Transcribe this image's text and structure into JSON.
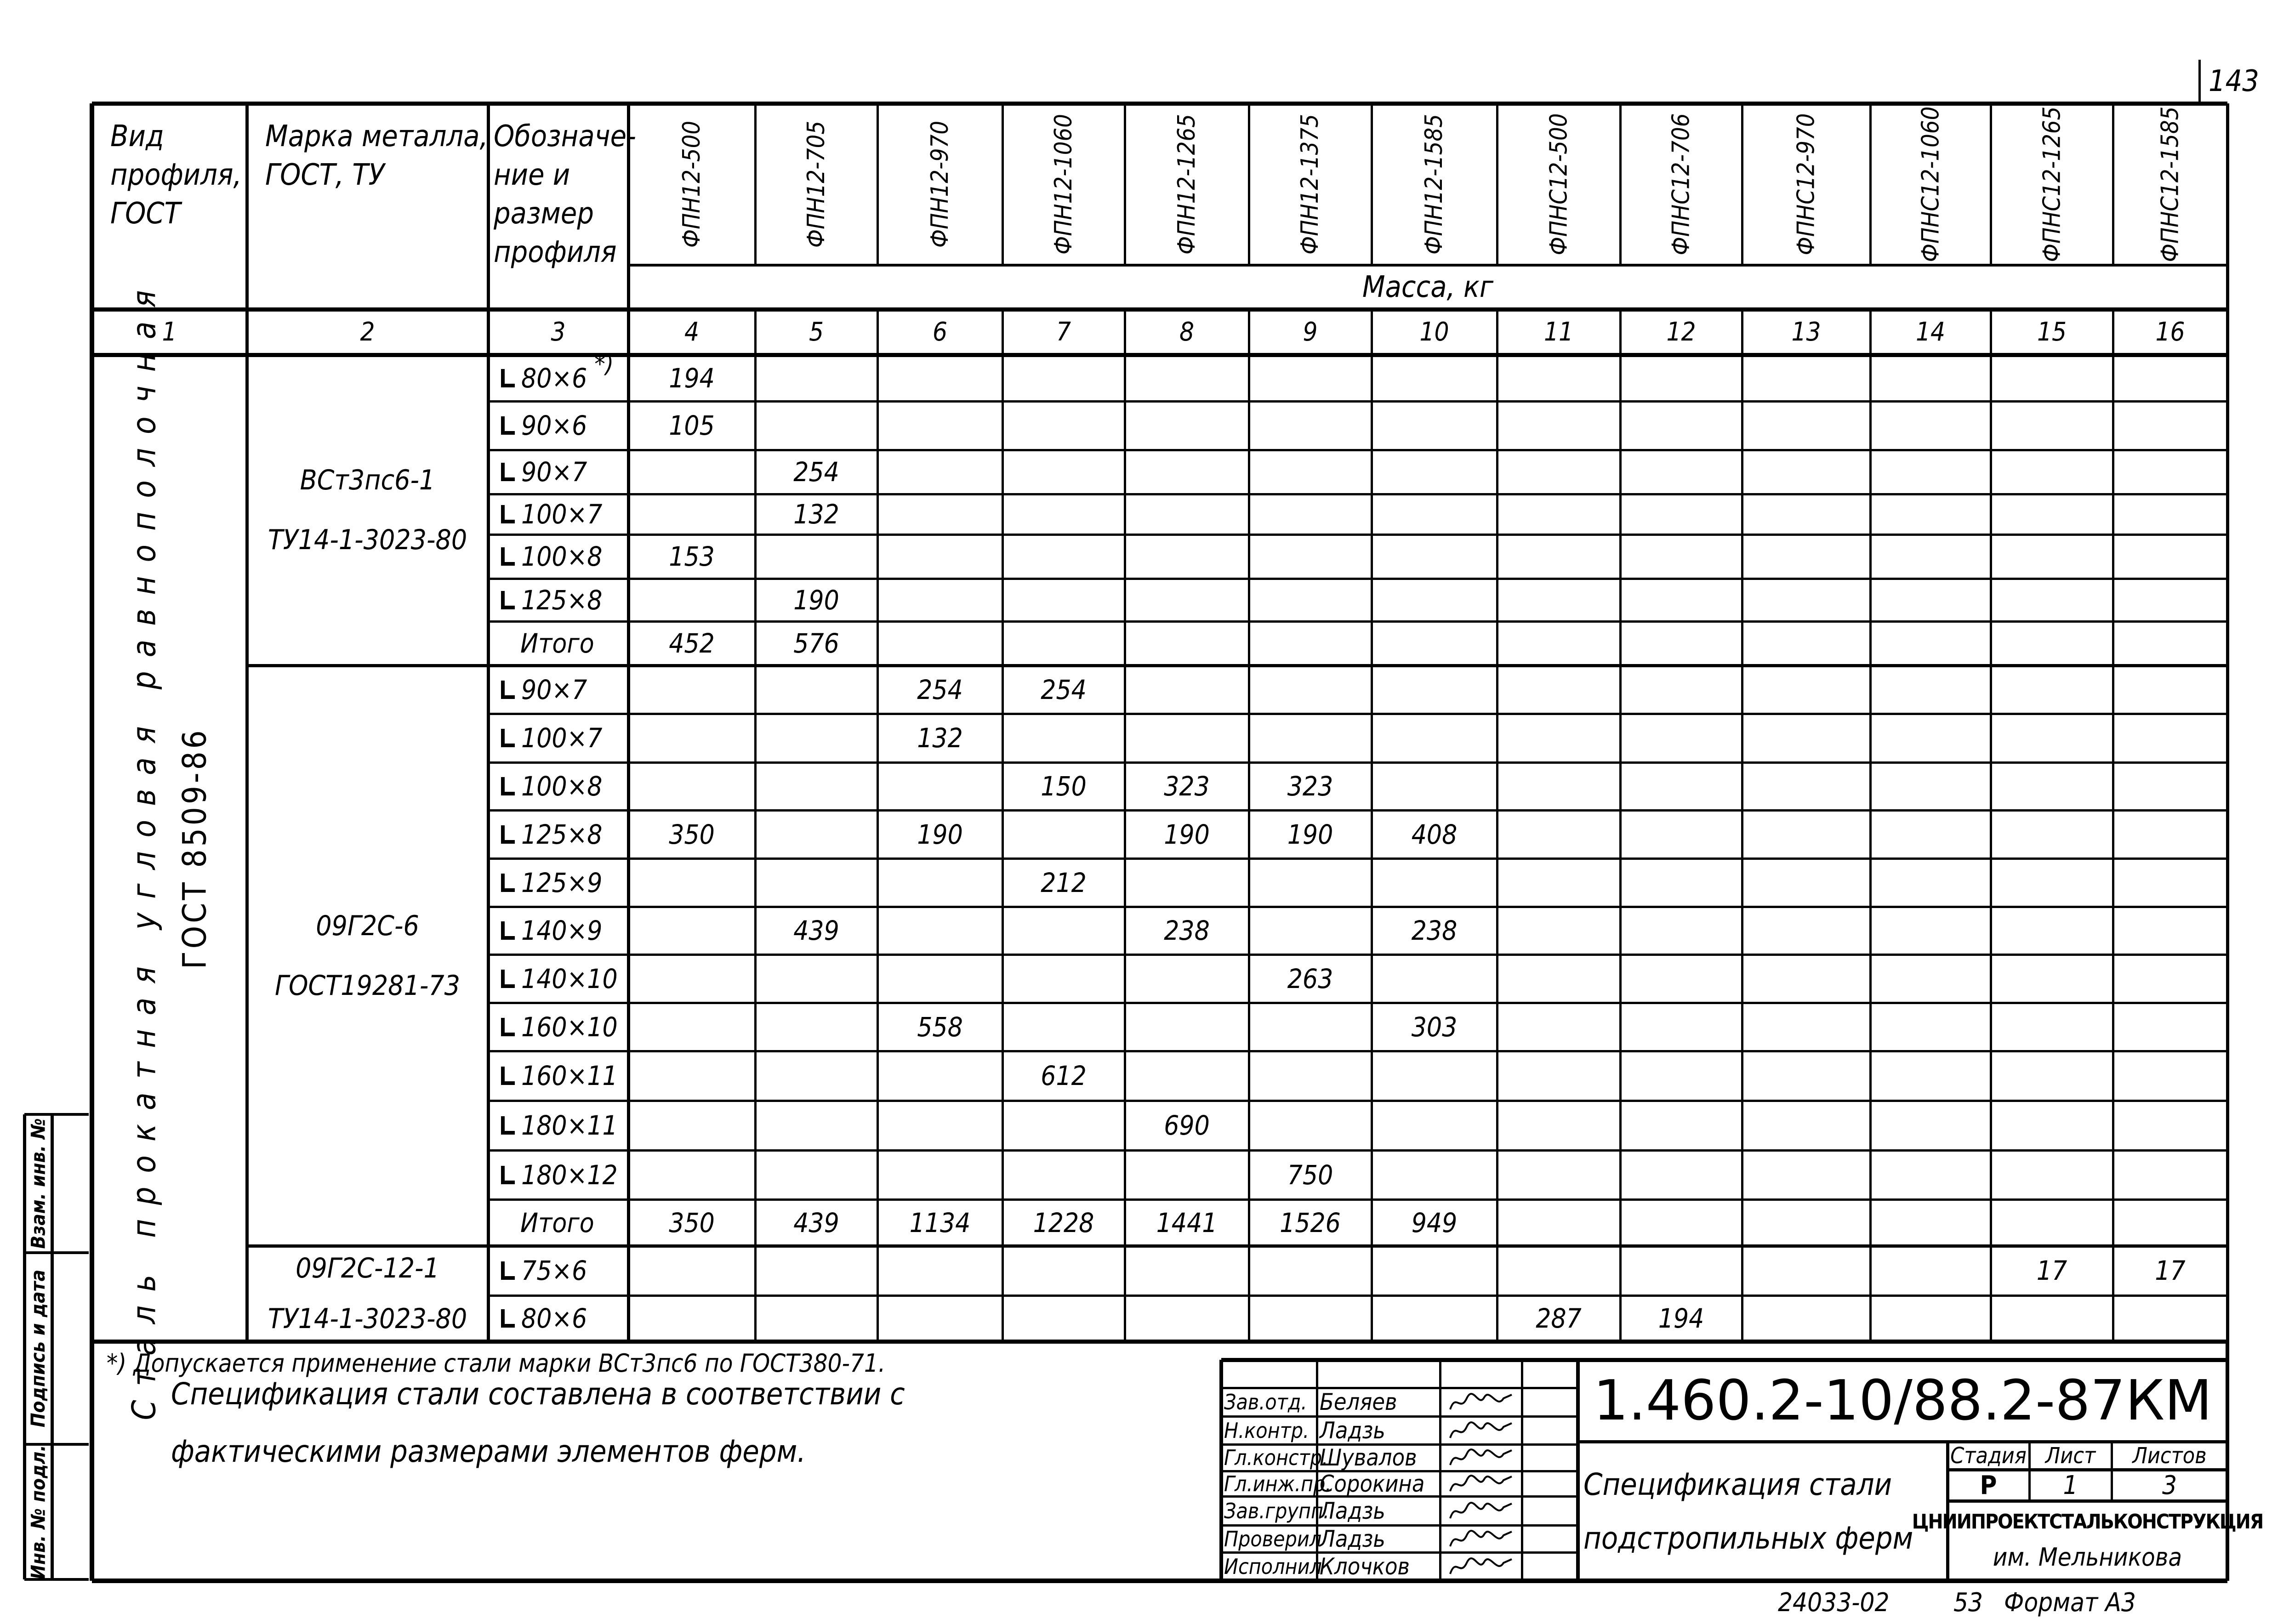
{
  "page_number": "143",
  "header": {
    "col1": "Вид профиля, ГОСТ",
    "col2": "Марка металла, ГОСТ, ТУ",
    "col3": "Обозначе-ние и размер профиля",
    "marks": [
      "ФПН12-500",
      "ФПН12-705",
      "ФПН12-970",
      "ФПН12-1060",
      "ФПН12-1265",
      "ФПН12-1375",
      "ФПН12-1585",
      "ФПНС12-500",
      "ФПНС12-706",
      "ФПНС12-970",
      "ФПНС12-1060",
      "ФПНС12-1265",
      "ФПНС12-1585"
    ],
    "mass_label": "Масса, кг",
    "col_numbers": [
      "1",
      "2",
      "3",
      "4",
      "5",
      "6",
      "7",
      "8",
      "9",
      "10",
      "11",
      "12",
      "13",
      "14",
      "15",
      "16"
    ]
  },
  "profile_type": {
    "line1": "Сталь прокатная угловая равнополочная",
    "line2": "ГОСТ 8509-86"
  },
  "groups": [
    {
      "steel": "ВСт3пс6-1",
      "spec": "ТУ14-1-3023-80",
      "rows": [
        {
          "profile": "80×6",
          "footnote": "*)",
          "angle": true,
          "values": [
            "194",
            "",
            "",
            "",
            "",
            "",
            "",
            "",
            "",
            "",
            "",
            "",
            ""
          ]
        },
        {
          "profile": "90×6",
          "angle": true,
          "values": [
            "105",
            "",
            "",
            "",
            "",
            "",
            "",
            "",
            "",
            "",
            "",
            "",
            ""
          ]
        },
        {
          "profile": "90×7",
          "angle": true,
          "values": [
            "",
            "254",
            "",
            "",
            "",
            "",
            "",
            "",
            "",
            "",
            "",
            "",
            ""
          ]
        },
        {
          "profile": "100×7",
          "angle": true,
          "values": [
            "",
            "132",
            "",
            "",
            "",
            "",
            "",
            "",
            "",
            "",
            "",
            "",
            ""
          ]
        },
        {
          "profile": "100×8",
          "angle": true,
          "values": [
            "153",
            "",
            "",
            "",
            "",
            "",
            "",
            "",
            "",
            "",
            "",
            "",
            ""
          ]
        },
        {
          "profile": "125×8",
          "angle": true,
          "values": [
            "",
            "190",
            "",
            "",
            "",
            "",
            "",
            "",
            "",
            "",
            "",
            "",
            ""
          ]
        },
        {
          "profile": "Итого",
          "angle": false,
          "values": [
            "452",
            "576",
            "",
            "",
            "",
            "",
            "",
            "",
            "",
            "",
            "",
            "",
            ""
          ]
        }
      ]
    },
    {
      "steel": "09Г2С-6",
      "spec": "ГОСТ19281-73",
      "rows": [
        {
          "profile": "90×7",
          "angle": true,
          "values": [
            "",
            "",
            "254",
            "254",
            "",
            "",
            "",
            "",
            "",
            "",
            "",
            "",
            ""
          ]
        },
        {
          "profile": "100×7",
          "angle": true,
          "values": [
            "",
            "",
            "132",
            "",
            "",
            "",
            "",
            "",
            "",
            "",
            "",
            "",
            ""
          ]
        },
        {
          "profile": "100×8",
          "angle": true,
          "values": [
            "",
            "",
            "",
            "150",
            "323",
            "323",
            "",
            "",
            "",
            "",
            "",
            "",
            ""
          ]
        },
        {
          "profile": "125×8",
          "angle": true,
          "values": [
            "350",
            "",
            "190",
            "",
            "190",
            "190",
            "408",
            "",
            "",
            "",
            "",
            "",
            ""
          ]
        },
        {
          "profile": "125×9",
          "angle": true,
          "values": [
            "",
            "",
            "",
            "212",
            "",
            "",
            "",
            "",
            "",
            "",
            "",
            "",
            ""
          ]
        },
        {
          "profile": "140×9",
          "angle": true,
          "values": [
            "",
            "439",
            "",
            "",
            "238",
            "",
            "238",
            "",
            "",
            "",
            "",
            "",
            ""
          ]
        },
        {
          "profile": "140×10",
          "angle": true,
          "values": [
            "",
            "",
            "",
            "",
            "",
            "263",
            "",
            "",
            "",
            "",
            "",
            "",
            ""
          ]
        },
        {
          "profile": "160×10",
          "angle": true,
          "values": [
            "",
            "",
            "558",
            "",
            "",
            "",
            "303",
            "",
            "",
            "",
            "",
            "",
            ""
          ]
        },
        {
          "profile": "160×11",
          "angle": true,
          "values": [
            "",
            "",
            "",
            "612",
            "",
            "",
            "",
            "",
            "",
            "",
            "",
            "",
            ""
          ]
        },
        {
          "profile": "180×11",
          "angle": true,
          "values": [
            "",
            "",
            "",
            "",
            "690",
            "",
            "",
            "",
            "",
            "",
            "",
            "",
            ""
          ]
        },
        {
          "profile": "180×12",
          "angle": true,
          "values": [
            "",
            "",
            "",
            "",
            "",
            "750",
            "",
            "",
            "",
            "",
            "",
            "",
            ""
          ]
        },
        {
          "profile": "Итого",
          "angle": false,
          "values": [
            "350",
            "439",
            "1134",
            "1228",
            "1441",
            "1526",
            "949",
            "",
            "",
            "",
            "",
            "",
            ""
          ]
        }
      ]
    },
    {
      "steel": "09Г2С-12-1",
      "spec": "ТУ14-1-3023-80",
      "rows": [
        {
          "profile": "75×6",
          "angle": true,
          "values": [
            "",
            "",
            "",
            "",
            "",
            "",
            "",
            "",
            "",
            "",
            "",
            "17",
            "17"
          ]
        },
        {
          "profile": "80×6",
          "angle": true,
          "values": [
            "",
            "",
            "",
            "",
            "",
            "",
            "",
            "287",
            "194",
            "",
            "",
            "",
            ""
          ]
        }
      ]
    }
  ],
  "notes": {
    "footnote": "*) Допускается применение стали марки ВСт3пс6 по ГОСТ380-71.",
    "line1": "Спецификация стали составлена в соответствии с",
    "line2": "фактическими размерами элементов ферм."
  },
  "title_block": {
    "signatories": [
      {
        "role": "Зав.отд.",
        "name": "Беляев"
      },
      {
        "role": "Н.контр.",
        "name": "Ладзь"
      },
      {
        "role": "Гл.констр.",
        "name": "Шувалов"
      },
      {
        "role": "Гл.инж.пр.",
        "name": "Сорокина"
      },
      {
        "role": "Зав.групп.",
        "name": "Ладзь"
      },
      {
        "role": "Проверил",
        "name": "Ладзь"
      },
      {
        "role": "Исполнил",
        "name": "Клочков"
      }
    ],
    "code": "1.460.2-10/88.2-87КМ",
    "title_line1": "Спецификация стали",
    "title_line2": "подстропильных ферм",
    "stage_label": "Стадия",
    "sheet_label": "Лист",
    "sheets_label": "Листов",
    "stage": "Р",
    "sheet": "1",
    "sheets": "3",
    "org_line1": "ЦНИИпроектстальконструкция",
    "org_line2": "им. Мельникова"
  },
  "side_stamp": {
    "field1": "Взам. инв. №",
    "field2": "Подпись и дата",
    "field3": "Инв. № подл."
  },
  "footer": {
    "order": "24033-02",
    "copy": "53",
    "format": "Формат А3"
  }
}
